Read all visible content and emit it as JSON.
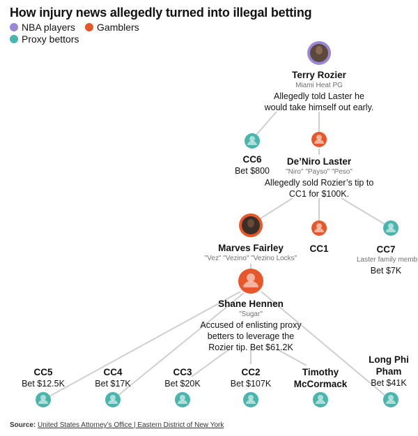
{
  "title": "How injury news allegedly turned into illegal betting",
  "legend": [
    {
      "label": "NBA players",
      "color": "#9b87d8"
    },
    {
      "label": "Gamblers",
      "color": "#e8572a"
    },
    {
      "label": "Proxy bettors",
      "color": "#4ab5ad"
    }
  ],
  "people": {
    "rozier": {
      "name": "Terry Rozier",
      "role": "Miami Heat PG",
      "note1": "Allegedly told Laster he",
      "note2": "would take himself out early."
    },
    "cc6": {
      "name": "CC6",
      "bet": "Bet $800"
    },
    "laster": {
      "name": "De’Niro Laster",
      "alias": "\"Niro\" \"Payso\" \"Peso\"",
      "note1": "Allegedly sold Rozier’s tip to",
      "note2": "CC1 for $100K."
    },
    "fairley": {
      "name": "Marves Fairley",
      "alias": "\"Vez\" \"Vezino\" \"Vezino Locks\""
    },
    "cc1": {
      "name": "CC1"
    },
    "cc7": {
      "name": "CC7",
      "role": "Laster family memb",
      "bet": "Bet $7K"
    },
    "hennen": {
      "name": "Shane Hennen",
      "alias": "\"Sugar\"",
      "note1": "Accused of enlisting proxy",
      "note2": "betters to leverage the",
      "note3": "Rozier tip. Bet $61.2K"
    },
    "cc5": {
      "name": "CC5",
      "bet": "Bet $12.5K"
    },
    "cc4": {
      "name": "CC4",
      "bet": "Bet $17K"
    },
    "cc3": {
      "name": "CC3",
      "bet": "Bet $20K"
    },
    "cc2": {
      "name": "CC2",
      "bet": "Bet $107K"
    },
    "mccormack": {
      "name1": "Timothy",
      "name2": "McCormack"
    },
    "pham": {
      "name1": "Long Phi",
      "name2": "Pham",
      "bet": "Bet $41K"
    }
  },
  "source": {
    "label": "Source:",
    "text": "United States Attorney’s Office | Eastern District of New York"
  }
}
